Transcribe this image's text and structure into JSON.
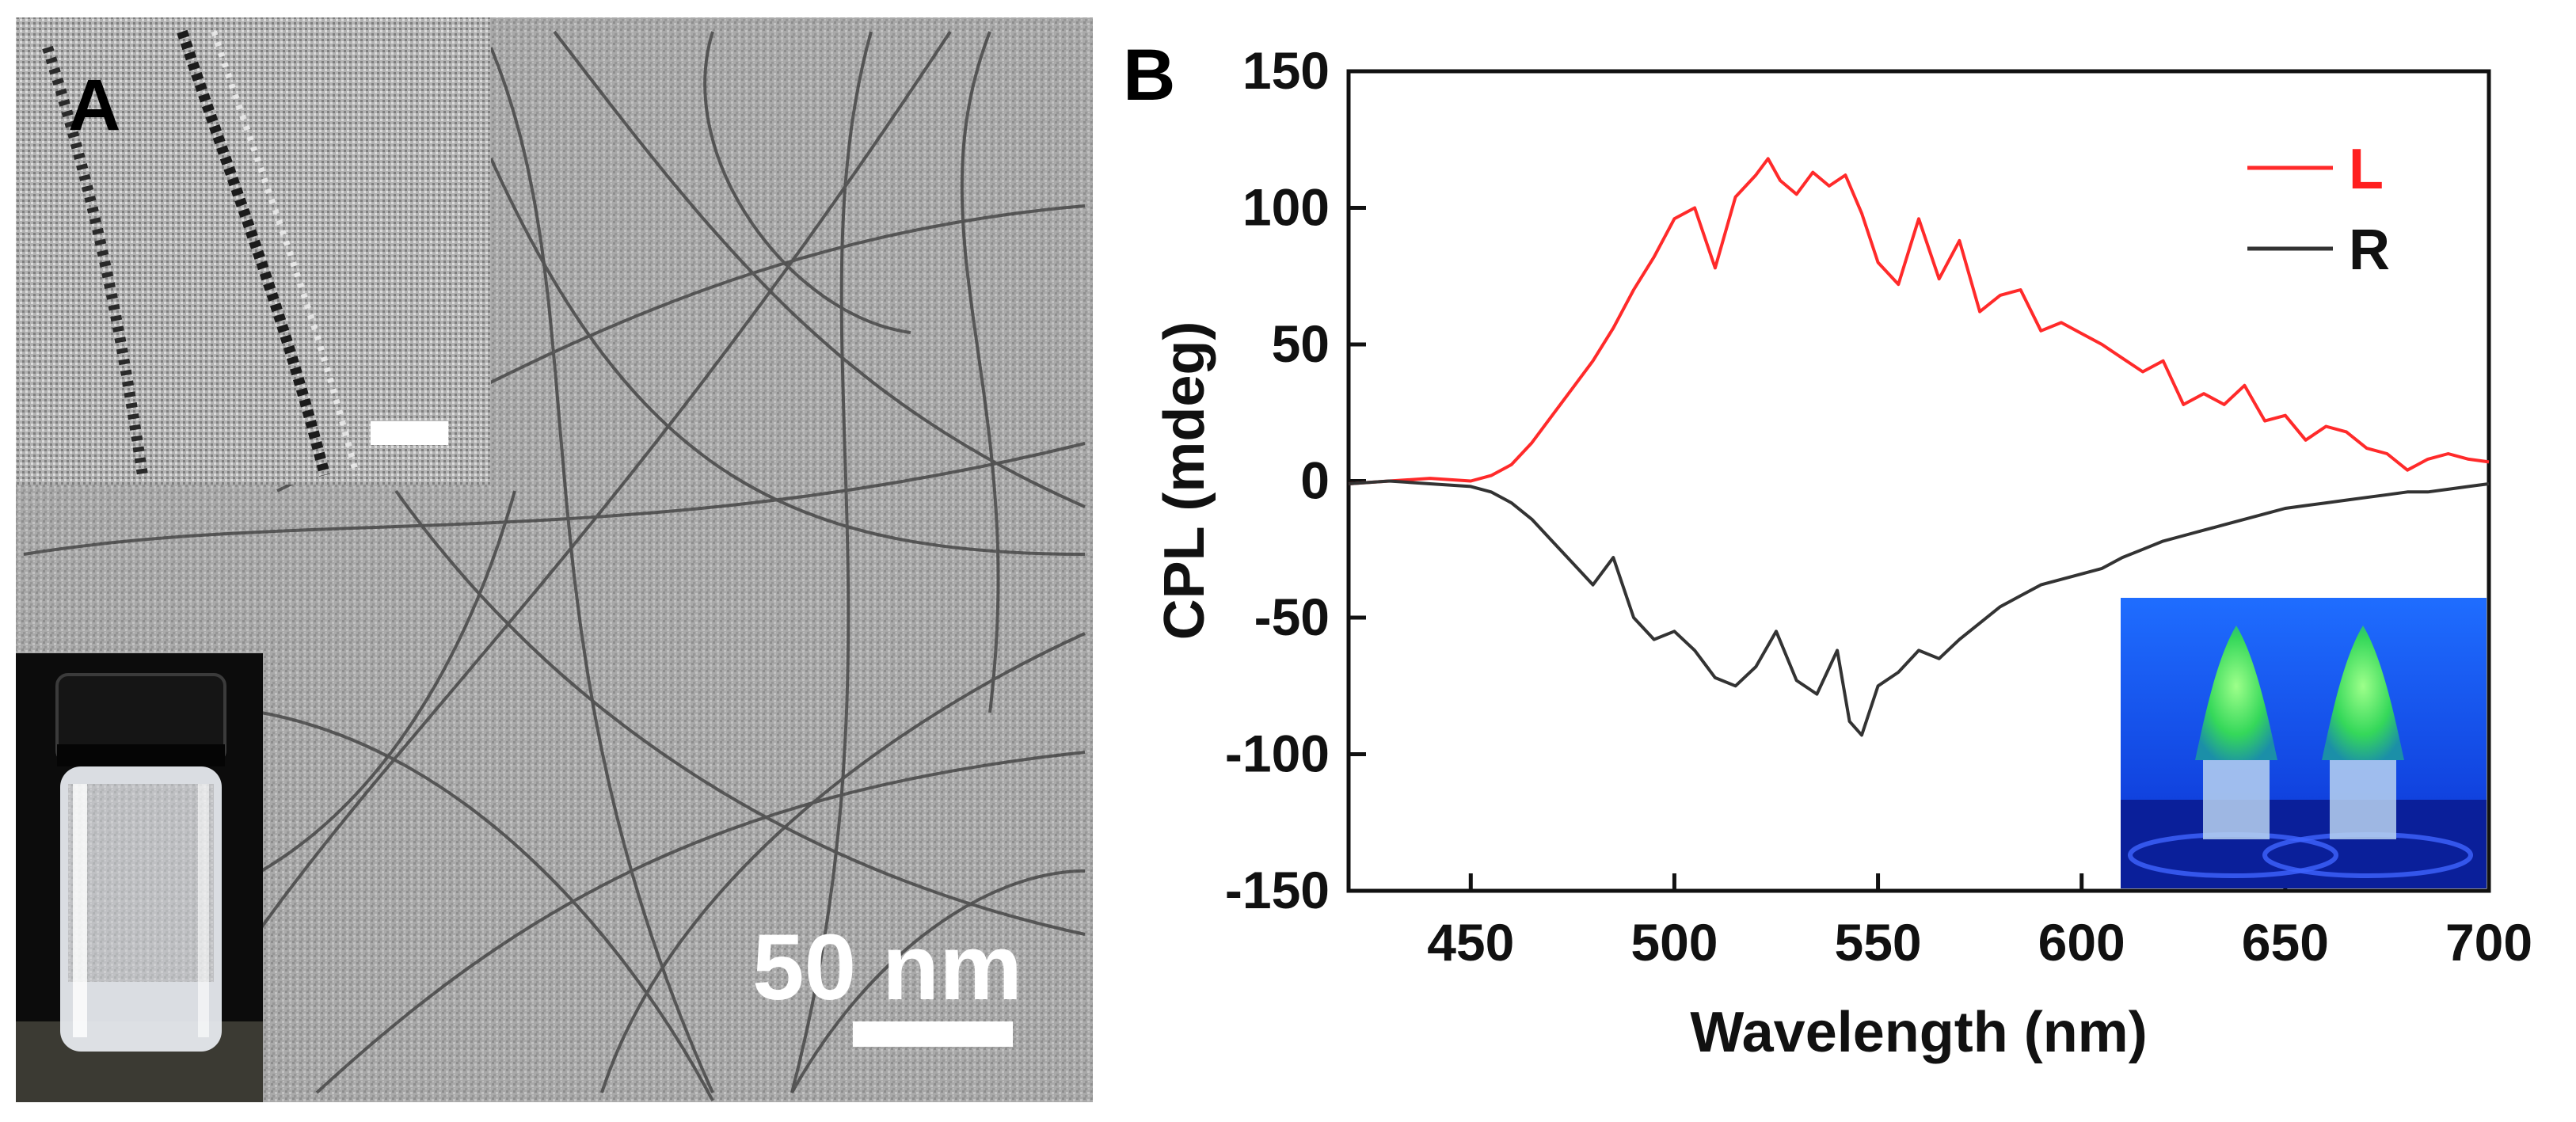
{
  "panel_a": {
    "label": "A",
    "scale_bar_text": "50 nm"
  },
  "panel_b": {
    "label": "B"
  },
  "chart_data": {
    "type": "line",
    "xlabel": "Wavelength (nm)",
    "ylabel": "CPL (mdeg)",
    "xlim": [
      420,
      700
    ],
    "ylim": [
      -150,
      150
    ],
    "x_ticks": [
      450,
      500,
      550,
      600,
      650,
      700
    ],
    "y_ticks": [
      150,
      100,
      50,
      0,
      -50,
      -100,
      -150
    ],
    "legend_position": "top-right",
    "series": [
      {
        "name": "L",
        "color": "#ff2a2a",
        "x": [
          420,
          430,
          440,
          450,
          455,
          460,
          465,
          470,
          475,
          480,
          485,
          490,
          495,
          500,
          505,
          510,
          515,
          520,
          523,
          526,
          530,
          534,
          538,
          542,
          546,
          550,
          555,
          560,
          565,
          570,
          575,
          580,
          585,
          590,
          595,
          600,
          605,
          610,
          615,
          620,
          625,
          630,
          635,
          640,
          645,
          650,
          655,
          660,
          665,
          670,
          675,
          680,
          685,
          690,
          695,
          700
        ],
        "y": [
          -1,
          0,
          1,
          0,
          2,
          6,
          14,
          24,
          34,
          44,
          56,
          70,
          82,
          96,
          100,
          78,
          104,
          112,
          118,
          110,
          105,
          113,
          108,
          112,
          98,
          80,
          72,
          96,
          74,
          88,
          62,
          68,
          70,
          55,
          58,
          54,
          50,
          45,
          40,
          44,
          28,
          32,
          28,
          35,
          22,
          24,
          15,
          20,
          18,
          12,
          10,
          4,
          8,
          10,
          8,
          7
        ]
      },
      {
        "name": "R",
        "color": "#333333",
        "x": [
          420,
          430,
          440,
          450,
          455,
          460,
          465,
          470,
          475,
          480,
          485,
          490,
          495,
          500,
          505,
          510,
          515,
          520,
          525,
          530,
          535,
          540,
          543,
          546,
          550,
          555,
          560,
          565,
          570,
          575,
          580,
          585,
          590,
          595,
          600,
          605,
          610,
          615,
          620,
          625,
          630,
          635,
          640,
          645,
          650,
          655,
          660,
          665,
          670,
          675,
          680,
          685,
          690,
          695,
          700
        ],
        "y": [
          -1,
          0,
          -1,
          -2,
          -4,
          -8,
          -14,
          -22,
          -30,
          -38,
          -28,
          -50,
          -58,
          -55,
          -62,
          -72,
          -75,
          -68,
          -55,
          -73,
          -78,
          -62,
          -88,
          -93,
          -75,
          -70,
          -62,
          -65,
          -58,
          -52,
          -46,
          -42,
          -38,
          -36,
          -34,
          -32,
          -28,
          -25,
          -22,
          -20,
          -18,
          -16,
          -14,
          -12,
          -10,
          -9,
          -8,
          -7,
          -6,
          -5,
          -4,
          -4,
          -3,
          -2,
          -1
        ]
      }
    ]
  }
}
